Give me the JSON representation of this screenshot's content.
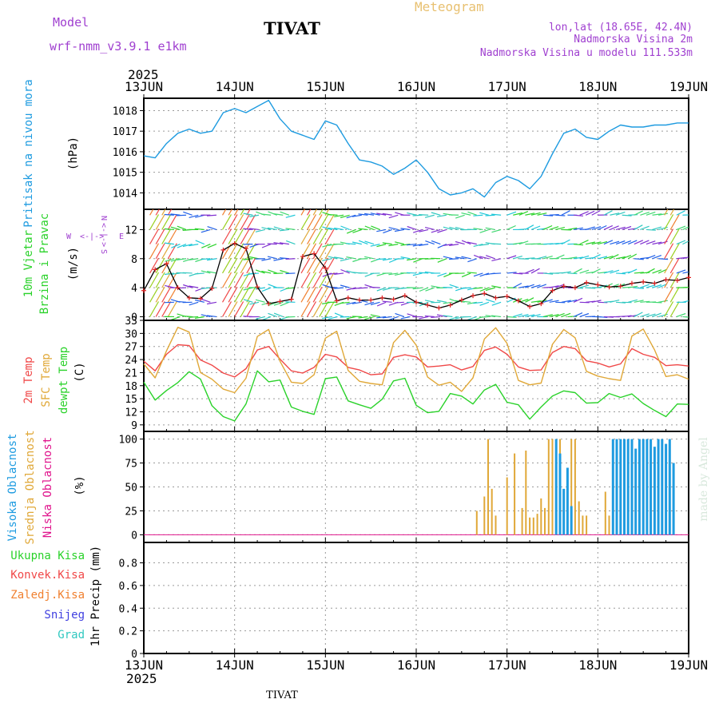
{
  "header": {
    "model_label": "Model",
    "model_name": "wrf-nmm_v3.9.1  e1km",
    "station": "TIVAT",
    "meteogram": "Meteogram",
    "lonlat": "lon,lat (18.65E, 42.4N)",
    "elevation": "Nadmorska Visina 2m",
    "model_elevation": "Nadmorska Visina u modelu 111.533m",
    "year_top": "2025",
    "year_bottom": "2025",
    "footer_station": "TIVAT",
    "credit": "made by Angel"
  },
  "colors": {
    "pressure": "#1e9be0",
    "temp2m": "#f04848",
    "sfc": "#e0a838",
    "dewpt": "#2ad22a",
    "high_cloud": "#1e9be0",
    "mid_cloud": "#e0a838",
    "low_cloud": "#e0148c",
    "wind_black": "#000000",
    "wind_red": "#e02020",
    "model_purple": "#a040d0",
    "meteogram_gold": "#e8c070"
  },
  "x_axis": {
    "ticks": [
      "13JUN",
      "14JUN",
      "15JUN",
      "16JUN",
      "17JUN",
      "18JUN",
      "19JUN"
    ]
  },
  "panels": {
    "pressure": {
      "label": "Pritisak na nivou mora",
      "unit": "(hPa)"
    },
    "wind": {
      "label_line1": "10m Vjetar",
      "label_line2": "Brzina i Pravac",
      "unit": "(m/s)",
      "compass_n": "N",
      "compass_w": "W",
      "compass_e": "E",
      "compass_s": "S",
      "compass_arrows_h": "<-|->",
      "compass_arrows_v": "<-|->"
    },
    "temperature": {
      "label_line1": "2m Temp",
      "label_line2": "SFC Temp",
      "label_line3": "dewpt Temp",
      "unit": "(C)"
    },
    "cloud": {
      "label_line1": "Visoka Oblacnost",
      "label_line2": "Srednja Oblacnost",
      "label_line3": "Niska Oblacnost",
      "unit": "(%)"
    },
    "precip": {
      "legend": [
        "Ukupna Kisa",
        "Konvek.Kisa",
        "Zaledj.Kisa",
        "Snijeg",
        "Grad"
      ],
      "legend_colors": [
        "#2ad22a",
        "#f04848",
        "#f08030",
        "#4040e0",
        "#30c8c0"
      ],
      "unit": "1hr Precip (mm)"
    }
  },
  "chart_data": [
    {
      "type": "line",
      "id": "pressure",
      "y_ticks": [
        1014,
        1015,
        1016,
        1017,
        1018
      ],
      "ylim": [
        1013.2,
        1018.6
      ],
      "x": [
        0,
        3,
        6,
        9,
        12,
        15,
        18,
        21,
        24,
        27,
        30,
        33,
        36,
        39,
        42,
        45,
        48,
        51,
        54,
        57,
        60,
        63,
        66,
        69,
        72,
        75,
        78,
        81,
        84,
        87,
        90,
        93,
        96,
        99,
        102,
        105,
        108,
        111,
        114,
        117,
        120,
        123,
        126,
        129,
        132,
        135,
        138,
        141,
        144
      ],
      "values": [
        1015.8,
        1015.7,
        1016.4,
        1016.9,
        1017.1,
        1016.9,
        1017.0,
        1017.9,
        1018.1,
        1017.9,
        1018.2,
        1018.5,
        1017.6,
        1017.0,
        1016.8,
        1016.6,
        1017.5,
        1017.3,
        1016.4,
        1015.6,
        1015.5,
        1015.3,
        1014.9,
        1015.2,
        1015.6,
        1015.0,
        1014.2,
        1013.9,
        1014.0,
        1014.2,
        1013.8,
        1014.5,
        1014.8,
        1014.6,
        1014.2,
        1014.8,
        1015.9,
        1016.9,
        1017.1,
        1016.7,
        1016.6,
        1017.0,
        1017.3,
        1017.2,
        1017.2,
        1017.3,
        1017.3,
        1017.4,
        1017.4
      ]
    },
    {
      "type": "line",
      "id": "wind",
      "y_ticks": [
        0,
        4,
        8,
        12
      ],
      "ylim": [
        -0.5,
        14.8
      ],
      "x": [
        0,
        3,
        6,
        9,
        12,
        15,
        18,
        21,
        24,
        27,
        30,
        33,
        36,
        39,
        42,
        45,
        48,
        51,
        54,
        57,
        60,
        63,
        66,
        69,
        72,
        75,
        78,
        81,
        84,
        87,
        90,
        93,
        96,
        99,
        102,
        105,
        108,
        111,
        114,
        117,
        120,
        123,
        126,
        129,
        132,
        135,
        138,
        141,
        144
      ],
      "speed": [
        3.6,
        6.5,
        7.3,
        4.0,
        2.6,
        2.5,
        3.9,
        9.2,
        10.1,
        9.4,
        4.1,
        1.8,
        2.1,
        2.4,
        8.3,
        8.7,
        6.7,
        2.2,
        2.6,
        2.3,
        2.3,
        2.6,
        2.4,
        2.9,
        2.0,
        1.6,
        1.2,
        1.6,
        2.3,
        2.9,
        3.2,
        2.6,
        2.8,
        2.2,
        1.4,
        1.8,
        3.6,
        4.2,
        4.0,
        4.7,
        4.4,
        4.1,
        4.2,
        4.6,
        4.8,
        4.6,
        5.1,
        5.0,
        5.4
      ]
    },
    {
      "type": "line",
      "id": "temperature",
      "y_ticks": [
        9,
        12,
        15,
        18,
        21,
        24,
        27,
        30,
        33
      ],
      "ylim": [
        7.5,
        33
      ],
      "x": [
        0,
        3,
        6,
        9,
        12,
        15,
        18,
        21,
        24,
        27,
        30,
        33,
        36,
        39,
        42,
        45,
        48,
        51,
        54,
        57,
        60,
        63,
        66,
        69,
        72,
        75,
        78,
        81,
        84,
        87,
        90,
        93,
        96,
        99,
        102,
        105,
        108,
        111,
        114,
        117,
        120,
        123,
        126,
        129,
        132,
        135,
        138,
        141,
        144
      ],
      "series": [
        {
          "name": "2m Temp",
          "values": [
            23.6,
            21.4,
            25.2,
            27.4,
            27.2,
            23.9,
            22.7,
            20.9,
            20.0,
            21.9,
            26.2,
            27.0,
            24.1,
            21.4,
            20.9,
            22.2,
            25.2,
            24.6,
            22.2,
            21.6,
            20.5,
            20.7,
            24.5,
            25.1,
            24.6,
            22.3,
            22.5,
            22.8,
            21.6,
            22.4,
            26.1,
            26.9,
            25.2,
            22.3,
            21.5,
            21.6,
            25.6,
            27.0,
            26.5,
            23.7,
            23.2,
            22.3,
            23.0,
            26.5,
            25.2,
            24.5,
            22.6,
            22.8,
            22.5
          ]
        },
        {
          "name": "SFC Temp",
          "values": [
            23.0,
            19.8,
            26.0,
            31.4,
            30.3,
            21.0,
            19.5,
            17.2,
            16.4,
            19.7,
            29.3,
            30.9,
            23.6,
            18.8,
            18.5,
            20.5,
            28.9,
            30.5,
            21.5,
            19.0,
            18.5,
            18.2,
            27.9,
            30.7,
            27.3,
            20.0,
            18.1,
            18.8,
            16.7,
            19.8,
            28.7,
            31.3,
            27.7,
            19.2,
            18.2,
            18.6,
            27.5,
            30.9,
            29.0,
            21.3,
            20.2,
            19.6,
            19.2,
            29.4,
            31.0,
            26.2,
            20.1,
            20.5,
            19.5
          ]
        },
        {
          "name": "dewpt Temp",
          "values": [
            18.8,
            14.7,
            16.9,
            18.7,
            21.2,
            19.5,
            13.4,
            10.9,
            9.9,
            13.8,
            21.4,
            18.9,
            19.3,
            13.1,
            12.1,
            11.4,
            19.6,
            20.0,
            14.5,
            13.6,
            12.8,
            14.9,
            19.1,
            19.7,
            13.5,
            11.8,
            12.1,
            16.2,
            15.6,
            13.8,
            17.0,
            18.3,
            14.2,
            13.6,
            10.3,
            13.1,
            15.6,
            16.8,
            16.4,
            14.0,
            14.1,
            16.2,
            15.3,
            16.1,
            13.9,
            12.3,
            10.9,
            13.8,
            13.7
          ]
        }
      ]
    },
    {
      "type": "bar",
      "id": "cloud",
      "y_ticks": [
        0,
        25,
        50,
        75,
        100
      ],
      "ylim": [
        -8,
        108
      ],
      "series": [
        {
          "name": "Srednja Oblacnost",
          "x": [
            88,
            90,
            91,
            92,
            93,
            96,
            98,
            100,
            101,
            102,
            103,
            104,
            105,
            106,
            107,
            108,
            109,
            110,
            111,
            112,
            113,
            114,
            115,
            116,
            117,
            122,
            123,
            124
          ],
          "values": [
            25,
            40,
            100,
            48,
            20,
            60,
            85,
            28,
            88,
            18,
            18,
            22,
            38,
            28,
            100,
            100,
            25,
            100,
            35,
            30,
            100,
            100,
            35,
            20,
            20,
            45,
            20,
            18
          ]
        },
        {
          "name": "Visoka Oblacnost",
          "x": [
            109,
            110,
            111,
            112,
            113,
            124,
            125,
            126,
            127,
            128,
            129,
            130,
            131,
            132,
            133,
            134,
            135,
            136,
            137,
            138,
            139,
            140
          ],
          "values": [
            100,
            85,
            48,
            70,
            30,
            100,
            100,
            100,
            100,
            100,
            100,
            90,
            100,
            100,
            100,
            100,
            92,
            100,
            100,
            95,
            100,
            75
          ]
        }
      ]
    },
    {
      "type": "line",
      "id": "precip",
      "y_ticks": [
        0,
        0.2,
        0.4,
        0.6,
        0.8
      ],
      "ylim": [
        0,
        0.98
      ],
      "values": []
    }
  ]
}
